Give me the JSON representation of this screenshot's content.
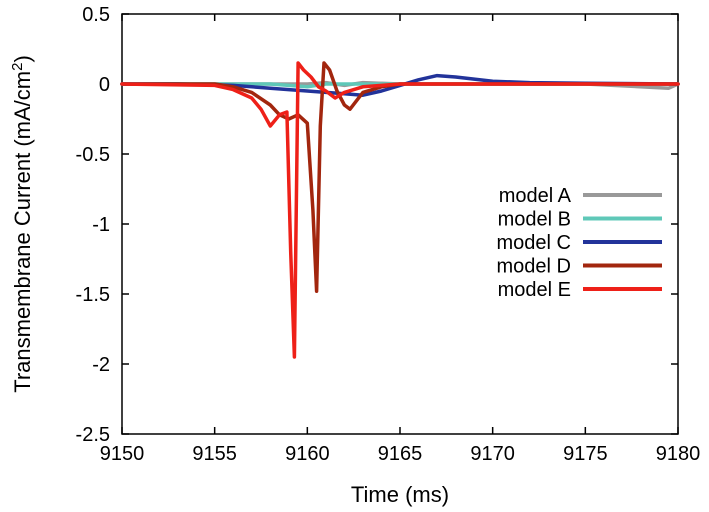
{
  "chart_data": {
    "type": "line",
    "title": "",
    "xlabel": "Time (ms)",
    "ylabel_main": "Transmembrane Current (mA/cm",
    "ylabel_sup": "2",
    "ylabel_end": ")",
    "xlim": [
      9150,
      9180
    ],
    "ylim": [
      -2.5,
      0.5
    ],
    "xticks": [
      9150,
      9155,
      9160,
      9165,
      9170,
      9175,
      9180
    ],
    "yticks": [
      0.5,
      0,
      -0.5,
      -1,
      -1.5,
      -2,
      -2.5
    ],
    "xtick_labels": [
      "9150",
      "9155",
      "9160",
      "9165",
      "9170",
      "9175",
      "9180"
    ],
    "ytick_labels": [
      "0.5",
      "0",
      "-0.5",
      "-1",
      "-1.5",
      "-2",
      "-2.5"
    ],
    "legend_position": "right",
    "series": [
      {
        "name": "model A",
        "color": "#999999",
        "x": [
          9150,
          9153,
          9155,
          9158,
          9160,
          9161,
          9162,
          9163,
          9165,
          9170,
          9175,
          9179.5,
          9180
        ],
        "y": [
          0,
          0,
          0,
          0,
          0,
          0.01,
          -0.01,
          0.01,
          0,
          0,
          0,
          -0.03,
          0
        ]
      },
      {
        "name": "model B",
        "color": "#5fc8b8",
        "x": [
          9150,
          9155,
          9158,
          9159,
          9160,
          9161,
          9162,
          9165,
          9170,
          9175,
          9180
        ],
        "y": [
          0,
          0,
          0,
          -0.01,
          -0.02,
          0,
          0,
          0,
          0,
          0,
          0
        ]
      },
      {
        "name": "model C",
        "color": "#22339a",
        "x": [
          9150,
          9153,
          9155,
          9156,
          9157,
          9158,
          9159,
          9160,
          9161,
          9162,
          9163,
          9164,
          9165,
          9166,
          9167,
          9168,
          9169,
          9170,
          9172,
          9175,
          9180
        ],
        "y": [
          0,
          0,
          -0.005,
          -0.01,
          -0.02,
          -0.03,
          -0.04,
          -0.05,
          -0.06,
          -0.07,
          -0.08,
          -0.05,
          -0.01,
          0.03,
          0.06,
          0.05,
          0.035,
          0.02,
          0.01,
          0.005,
          0
        ]
      },
      {
        "name": "model D",
        "color": "#a2260e",
        "x": [
          9150,
          9155,
          9156,
          9157,
          9158,
          9158.5,
          9159,
          9159.5,
          9160,
          9160.3,
          9160.5,
          9160.7,
          9160.9,
          9161.2,
          9161.6,
          9162.0,
          9162.3,
          9163,
          9164,
          9165,
          9170,
          9180
        ],
        "y": [
          0,
          0,
          -0.02,
          -0.06,
          -0.15,
          -0.22,
          -0.25,
          -0.22,
          -0.28,
          -0.9,
          -1.48,
          -0.3,
          0.15,
          0.1,
          -0.05,
          -0.15,
          -0.18,
          -0.06,
          -0.02,
          0,
          0,
          0
        ]
      },
      {
        "name": "model E",
        "color": "#ee2018",
        "x": [
          9150,
          9155,
          9156,
          9157,
          9157.5,
          9158,
          9158.5,
          9158.9,
          9159.1,
          9159.3,
          9159.5,
          9159.8,
          9160.2,
          9160.6,
          9161,
          9161.5,
          9162,
          9163,
          9164,
          9165,
          9170,
          9180
        ],
        "y": [
          0,
          -0.01,
          -0.04,
          -0.1,
          -0.18,
          -0.3,
          -0.22,
          -0.2,
          -1.2,
          -1.95,
          0.15,
          0.1,
          0.05,
          -0.02,
          -0.05,
          -0.1,
          -0.06,
          -0.02,
          -0.01,
          0,
          0,
          0
        ]
      }
    ]
  }
}
